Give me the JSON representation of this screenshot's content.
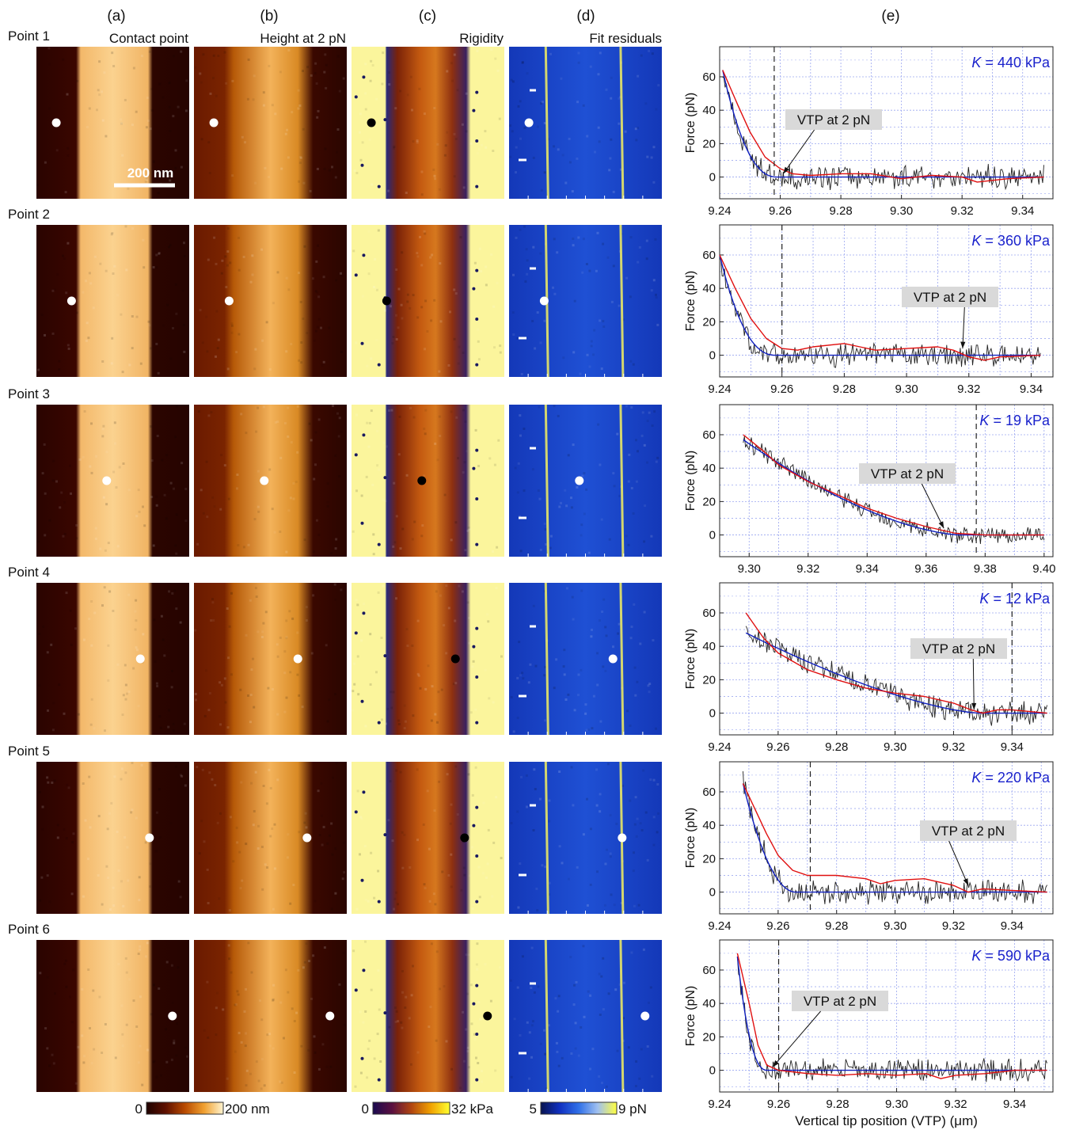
{
  "column_headers": [
    "(a)",
    "(b)",
    "(c)",
    "(d)",
    "(e)"
  ],
  "map_titles": [
    "Contact point",
    "Height at 2 pN",
    "Rigidity",
    "Fit residuals"
  ],
  "scale_bar_label": "200 nm",
  "colorbars": [
    {
      "min": "0",
      "max": "200 nm",
      "colors": [
        "#1e0200",
        "#5e1000",
        "#b84a00",
        "#f0a030",
        "#fff4d0"
      ]
    },
    {
      "min": "0",
      "max": "32 kPa",
      "colors": [
        "#1a0a50",
        "#5a1040",
        "#b04510",
        "#f0a000",
        "#ffff30"
      ]
    },
    {
      "min": "5",
      "max": "9 pN",
      "colors": [
        "#081450",
        "#1030c0",
        "#3070e8",
        "#a0c0f0",
        "#ffff40"
      ]
    }
  ],
  "marker_colors": {
    "contact": "#ffffff",
    "height": "#ffffff",
    "rigidity": "#000000",
    "residuals": "#ffffff"
  },
  "colors": {
    "data": "#222222",
    "smooth": "#e01010",
    "fit": "#1020c0",
    "k_text": "#1a22cc",
    "annotation_bg": "#d9d9d9",
    "grid": "#9aa6f0"
  },
  "chart_data": [
    {
      "type": "line",
      "row_label": "Point 1",
      "marker_x_frac": 0.13,
      "K_label": "K",
      "K_value": "= 440 kPa",
      "annotation": "VTP at 2 pN",
      "annotation_target": [
        9.261,
        2
      ],
      "vtp_2pN": 9.258,
      "xlim": [
        9.24,
        9.35
      ],
      "ylim": [
        -13,
        78
      ],
      "xticks": [
        "9.24",
        "9.26",
        "9.28",
        "9.30",
        "9.32",
        "9.34"
      ],
      "yticks": [
        "0",
        "20",
        "40",
        "60"
      ],
      "xlabel": "",
      "ylabel": "Force (pN)",
      "fit": {
        "contact": 9.259,
        "force_at_start": 64,
        "exp": 2.3,
        "x_start": 9.241,
        "x_end": 9.347
      },
      "noise_amp": 4,
      "smooth": [
        [
          9.241,
          64
        ],
        [
          9.246,
          43
        ],
        [
          9.25,
          27
        ],
        [
          9.255,
          12
        ],
        [
          9.26,
          5
        ],
        [
          9.264,
          2
        ],
        [
          9.27,
          1
        ],
        [
          9.28,
          2
        ],
        [
          9.29,
          2
        ],
        [
          9.3,
          -1
        ],
        [
          9.31,
          1
        ],
        [
          9.32,
          0
        ],
        [
          9.325,
          -3
        ],
        [
          9.33,
          -2
        ],
        [
          9.335,
          -1
        ],
        [
          9.347,
          0
        ]
      ]
    },
    {
      "type": "line",
      "row_label": "Point 2",
      "marker_x_frac": 0.23,
      "K_label": "K",
      "K_value": "= 360 kPa",
      "annotation": "VTP at 2 pN",
      "annotation_target": [
        9.318,
        4
      ],
      "vtp_2pN": 9.26,
      "xlim": [
        9.24,
        9.347
      ],
      "ylim": [
        -13,
        78
      ],
      "xticks": [
        "9.24",
        "9.26",
        "9.28",
        "9.30",
        "9.32",
        "9.34"
      ],
      "yticks": [
        "0",
        "20",
        "40",
        "60"
      ],
      "xlabel": "",
      "ylabel": "Force (pN)",
      "fit": {
        "contact": 9.258,
        "force_at_start": 60,
        "exp": 2.3,
        "x_start": 9.24,
        "x_end": 9.343
      },
      "noise_amp": 4,
      "smooth": [
        [
          9.24,
          60
        ],
        [
          9.245,
          40
        ],
        [
          9.25,
          22
        ],
        [
          9.255,
          10
        ],
        [
          9.26,
          4
        ],
        [
          9.265,
          3
        ],
        [
          9.27,
          5
        ],
        [
          9.28,
          7
        ],
        [
          9.285,
          5
        ],
        [
          9.29,
          3
        ],
        [
          9.3,
          4
        ],
        [
          9.31,
          5
        ],
        [
          9.315,
          3
        ],
        [
          9.32,
          -1
        ],
        [
          9.325,
          -3
        ],
        [
          9.33,
          -1
        ],
        [
          9.343,
          0
        ]
      ]
    },
    {
      "type": "line",
      "row_label": "Point 3",
      "marker_x_frac": 0.46,
      "K_label": "K",
      "K_value": "= 19 kPa",
      "annotation": "VTP at 2 pN",
      "annotation_target": [
        9.366,
        4
      ],
      "vtp_2pN": 9.377,
      "xlim": [
        9.29,
        9.403
      ],
      "ylim": [
        -13,
        78
      ],
      "xticks": [
        "9.30",
        "9.32",
        "9.34",
        "9.36",
        "9.38",
        "9.40"
      ],
      "yticks": [
        "0",
        "20",
        "40",
        "60"
      ],
      "xlabel": "",
      "ylabel": "Force (pN)",
      "fit": {
        "contact": 9.372,
        "force_at_start": 57,
        "exp": 1.6,
        "x_start": 9.298,
        "x_end": 9.4
      },
      "noise_amp": 3,
      "smooth": [
        [
          9.298,
          60
        ],
        [
          9.305,
          50
        ],
        [
          9.31,
          42
        ],
        [
          9.32,
          32
        ],
        [
          9.33,
          24
        ],
        [
          9.34,
          16
        ],
        [
          9.35,
          10
        ],
        [
          9.36,
          5
        ],
        [
          9.37,
          1
        ],
        [
          9.38,
          0
        ],
        [
          9.39,
          0
        ],
        [
          9.4,
          0
        ]
      ]
    },
    {
      "type": "line",
      "row_label": "Point 4",
      "marker_x_frac": 0.68,
      "K_label": "K",
      "K_value": "= 12 kPa",
      "annotation": "VTP at 2 pN",
      "annotation_target": [
        9.327,
        2
      ],
      "vtp_2pN": 9.34,
      "xlim": [
        9.24,
        9.354
      ],
      "ylim": [
        -13,
        78
      ],
      "xticks": [
        "9.24",
        "9.26",
        "9.28",
        "9.30",
        "9.32",
        "9.34"
      ],
      "yticks": [
        "0",
        "20",
        "40",
        "60"
      ],
      "xlabel": "",
      "ylabel": "Force (pN)",
      "fit": {
        "contact": 9.329,
        "force_at_start": 48,
        "exp": 1.45,
        "x_start": 9.249,
        "x_end": 9.352
      },
      "noise_amp": 4,
      "smooth": [
        [
          9.249,
          60
        ],
        [
          9.255,
          45
        ],
        [
          9.26,
          36
        ],
        [
          9.27,
          26
        ],
        [
          9.28,
          20
        ],
        [
          9.29,
          15
        ],
        [
          9.3,
          12
        ],
        [
          9.31,
          10
        ],
        [
          9.32,
          6
        ],
        [
          9.326,
          2
        ],
        [
          9.33,
          0
        ],
        [
          9.335,
          2
        ],
        [
          9.34,
          2
        ],
        [
          9.352,
          0
        ]
      ]
    },
    {
      "type": "line",
      "row_label": "Point 5",
      "marker_x_frac": 0.74,
      "K_label": "K",
      "K_value": "= 220 kPa",
      "annotation": "VTP at 2 pN",
      "annotation_target": [
        9.325,
        4
      ],
      "vtp_2pN": 9.271,
      "xlim": [
        9.24,
        9.354
      ],
      "ylim": [
        -13,
        78
      ],
      "xticks": [
        "9.24",
        "9.26",
        "9.28",
        "9.30",
        "9.32",
        "9.34"
      ],
      "yticks": [
        "0",
        "20",
        "40",
        "60"
      ],
      "xlabel": "",
      "ylabel": "Force (pN)",
      "fit": {
        "contact": 9.266,
        "force_at_start": 65,
        "exp": 2.0,
        "x_start": 9.248,
        "x_end": 9.352
      },
      "noise_amp": 4,
      "smooth": [
        [
          9.248,
          65
        ],
        [
          9.252,
          50
        ],
        [
          9.256,
          35
        ],
        [
          9.26,
          22
        ],
        [
          9.265,
          13
        ],
        [
          9.27,
          10
        ],
        [
          9.28,
          10
        ],
        [
          9.29,
          8
        ],
        [
          9.295,
          5
        ],
        [
          9.3,
          7
        ],
        [
          9.31,
          8
        ],
        [
          9.32,
          4
        ],
        [
          9.325,
          0
        ],
        [
          9.33,
          2
        ],
        [
          9.34,
          1
        ],
        [
          9.352,
          0
        ]
      ]
    },
    {
      "type": "line",
      "row_label": "Point 6",
      "marker_x_frac": 0.89,
      "K_label": "K",
      "K_value": "= 590 kPa",
      "annotation": "VTP at 2 pN",
      "annotation_target": [
        9.258,
        2
      ],
      "vtp_2pN": 9.26,
      "xlim": [
        9.24,
        9.353
      ],
      "ylim": [
        -13,
        78
      ],
      "xticks": [
        "9.24",
        "9.26",
        "9.28",
        "9.30",
        "9.32",
        "9.34"
      ],
      "yticks": [
        "0",
        "20",
        "40",
        "60"
      ],
      "xlabel": "Vertical tip position (VTP) (μm)",
      "ylabel": "Force (pN)",
      "fit": {
        "contact": 9.256,
        "force_at_start": 68,
        "exp": 2.3,
        "x_start": 9.246,
        "x_end": 9.351
      },
      "noise_amp": 4,
      "smooth": [
        [
          9.246,
          70
        ],
        [
          9.25,
          40
        ],
        [
          9.253,
          15
        ],
        [
          9.256,
          3
        ],
        [
          9.26,
          0
        ],
        [
          9.27,
          -2
        ],
        [
          9.28,
          -3
        ],
        [
          9.29,
          -2
        ],
        [
          9.3,
          -3
        ],
        [
          9.31,
          -2
        ],
        [
          9.315,
          -5
        ],
        [
          9.32,
          -3
        ],
        [
          9.33,
          -2
        ],
        [
          9.34,
          0
        ],
        [
          9.351,
          0
        ]
      ]
    }
  ]
}
